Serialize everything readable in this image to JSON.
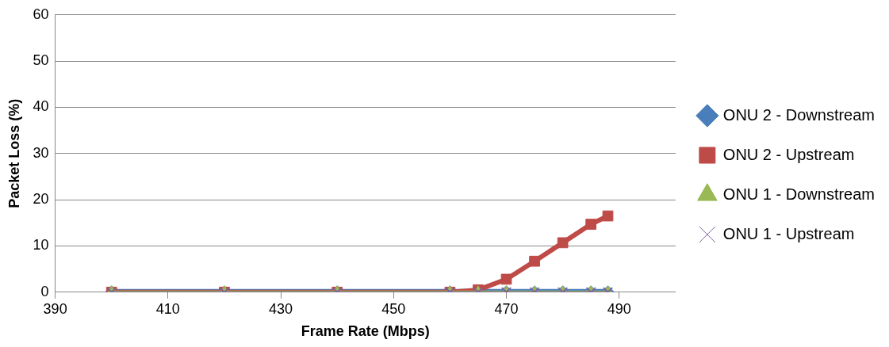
{
  "chart_data": {
    "type": "line",
    "xlabel": "Frame Rate (Mbps)",
    "ylabel": "Packet Loss (%)",
    "x": [
      400,
      420,
      440,
      460,
      465,
      470,
      475,
      480,
      485,
      488
    ],
    "series": [
      {
        "name": "ONU 2 - Downstream",
        "color": "#4a7ebb",
        "marker": "diamond",
        "values": [
          0,
          0,
          0,
          0,
          0,
          0,
          0,
          0,
          0,
          0
        ]
      },
      {
        "name": "ONU 2 - Upstream",
        "color": "#be4b48",
        "marker": "square",
        "values": [
          0,
          0,
          0,
          0,
          0.5,
          2.8,
          6.7,
          10.7,
          14.7,
          16.5
        ]
      },
      {
        "name": "ONU 1 - Downstream",
        "color": "#98b954",
        "marker": "triangle",
        "values": [
          0,
          0,
          0,
          0,
          0,
          0,
          0,
          0,
          0,
          0
        ]
      },
      {
        "name": "ONU 1 - Upstream",
        "color": "#7d60a0",
        "marker": "cross",
        "values": [
          0,
          0,
          0,
          0,
          0,
          0,
          0,
          0,
          0,
          0
        ]
      }
    ],
    "xlim": [
      390,
      500
    ],
    "xticks": [
      390,
      410,
      430,
      450,
      470,
      490
    ],
    "ylim": [
      0,
      60
    ],
    "yticks": [
      0,
      10,
      20,
      30,
      40,
      50,
      60
    ],
    "grid": "y",
    "legend": "right",
    "line_style": "solid"
  }
}
